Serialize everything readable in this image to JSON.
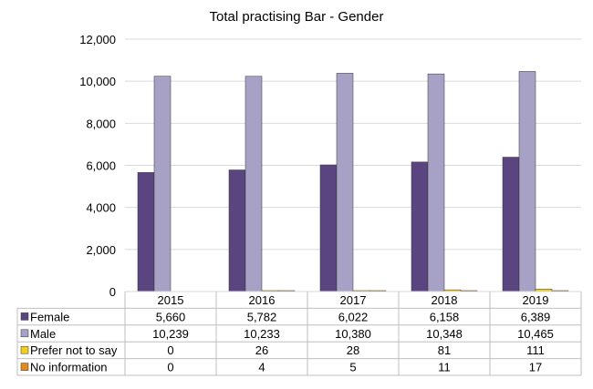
{
  "chart_data": {
    "type": "bar",
    "title": "Total practising Bar - Gender",
    "categories": [
      "2015",
      "2016",
      "2017",
      "2018",
      "2019"
    ],
    "ylim": [
      0,
      12000
    ],
    "yticks": [
      0,
      2000,
      4000,
      6000,
      8000,
      10000,
      12000
    ],
    "ytick_labels": [
      "0",
      "2,000",
      "4,000",
      "6,000",
      "8,000",
      "10,000",
      "12,000"
    ],
    "grid": true,
    "legend": "data-table",
    "series": [
      {
        "name": "Female",
        "color": "#5b4580",
        "values": [
          5660,
          5782,
          6022,
          6158,
          6389
        ],
        "labels": [
          "5,660",
          "5,782",
          "6,022",
          "6,158",
          "6,389"
        ]
      },
      {
        "name": "Male",
        "color": "#a7a1c6",
        "values": [
          10239,
          10233,
          10380,
          10348,
          10465
        ],
        "labels": [
          "10,239",
          "10,233",
          "10,380",
          "10,348",
          "10,465"
        ]
      },
      {
        "name": "Prefer not to say",
        "color": "#f2cf1d",
        "values": [
          0,
          26,
          28,
          81,
          111
        ],
        "labels": [
          "0",
          "26",
          "28",
          "81",
          "111"
        ]
      },
      {
        "name": "No information",
        "color": "#e48a1b",
        "values": [
          0,
          4,
          5,
          11,
          17
        ],
        "labels": [
          "0",
          "4",
          "5",
          "11",
          "17"
        ]
      }
    ]
  }
}
